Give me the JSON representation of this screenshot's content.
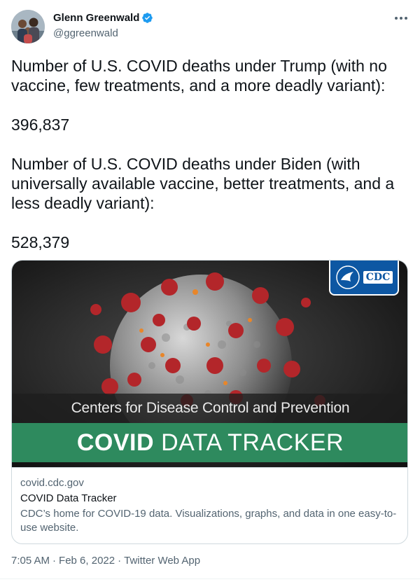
{
  "author": {
    "display_name": "Glenn Greenwald",
    "handle": "@ggreenwald",
    "verified": true
  },
  "tweet": {
    "paragraphs": [
      "Number of U.S. COVID deaths under Trump (with no vaccine, few treatments, and a more deadly variant):",
      "396,837",
      "Number of U.S. COVID deaths under Biden (with universally available vaccine, better treatments, and a less deadly variant):",
      "528,379"
    ]
  },
  "card": {
    "image": {
      "logo_text": "CDC",
      "banner_subtitle": "Centers for Disease Control and Prevention",
      "banner_title_bold": "COVID",
      "banner_title_light": "DATA TRACKER"
    },
    "domain": "covid.cdc.gov",
    "title": "COVID Data Tracker",
    "description": "CDC’s home for COVID-19 data. Visualizations, graphs, and data in one easy-to-use website."
  },
  "footer": {
    "time": "7:05 AM",
    "date": "Feb 6, 2022",
    "source": "Twitter Web App",
    "separator": "·"
  },
  "colors": {
    "verified": "#1d9bf0",
    "secondary_text": "#536471",
    "banner_green": "#2e8a5e",
    "cdc_blue": "#0d57a3"
  },
  "icons": {
    "more": "more-horizontal-icon",
    "verified": "verified-badge-icon"
  }
}
